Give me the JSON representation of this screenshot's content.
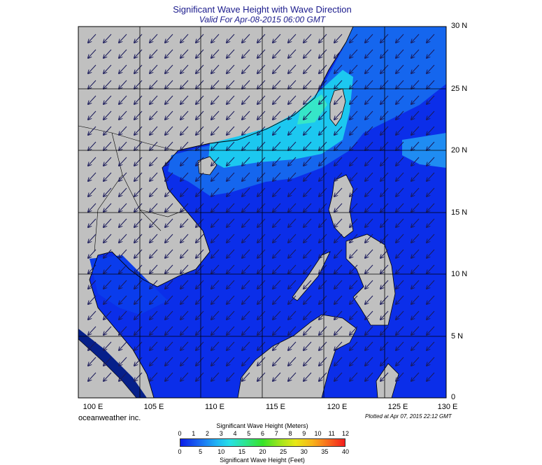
{
  "title": "Significant Wave Height with Wave Direction",
  "subtitle": "Valid For Apr-08-2015 06:00 GMT",
  "credit": "oceanweather inc.",
  "plotted": "Plotted at Apr 07, 2015 22:12 GMT",
  "map": {
    "lon_range": [
      100,
      130
    ],
    "lat_range": [
      0,
      30
    ],
    "lon_labels": [
      "100 E",
      "105 E",
      "110 E",
      "115 E",
      "120 E",
      "125 E",
      "130 E"
    ],
    "lat_labels": [
      "30 N",
      "25 N",
      "20 N",
      "15 N",
      "10 N",
      "5 N",
      "0"
    ],
    "land_color": "#c0c0c0",
    "wind_arrow_direction": "southwest"
  },
  "colorbar": {
    "title_meters": "Significant Wave Height (Meters)",
    "title_feet": "Significant Wave Height (Feet)",
    "meters_ticks": [
      "0",
      "1",
      "2",
      "3",
      "4",
      "5",
      "6",
      "7",
      "8",
      "9",
      "10",
      "11",
      "12"
    ],
    "feet_ticks": [
      "0",
      "5",
      "10",
      "15",
      "20",
      "25",
      "30",
      "35",
      "40"
    ]
  },
  "colors": {
    "ocean_low": "#0a1ce8",
    "ocean_mid": "#1a6cf2",
    "ocean_high": "#1fd6f0",
    "title_color": "#1a1a8c"
  }
}
